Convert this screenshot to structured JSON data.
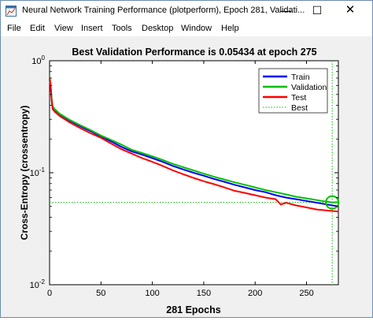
{
  "window": {
    "title": "Neural Network Training Performance (plotperform), Epoch 281, Validati...",
    "minimize_glyph": "—",
    "maximize_glyph": "☐",
    "close_glyph": "✕",
    "icon": "matlab-figure-icon"
  },
  "menu": {
    "items": [
      "File",
      "Edit",
      "View",
      "Insert",
      "Tools",
      "Desktop",
      "Window",
      "Help"
    ]
  },
  "chart_data": {
    "type": "line",
    "title": "Best Validation Performance is 0.05434 at epoch 275",
    "xlabel": "281 Epochs",
    "ylabel": "Cross-Entropy  (crossentropy)",
    "xlim": [
      0,
      281
    ],
    "ylim": [
      0.01,
      1
    ],
    "yscale": "log",
    "grid": false,
    "legend_position": "top-right",
    "x_ticks": [
      0,
      50,
      100,
      150,
      200,
      250
    ],
    "y_ticks": [
      {
        "value": 1,
        "base": "10",
        "exp": "0"
      },
      {
        "value": 0.1,
        "base": "10",
        "exp": "-1"
      },
      {
        "value": 0.01,
        "base": "10",
        "exp": "-2"
      }
    ],
    "series": [
      {
        "name": "Train",
        "color": "#0000ff",
        "points": [
          [
            0,
            0.68
          ],
          [
            1,
            0.6
          ],
          [
            2,
            0.45
          ],
          [
            3,
            0.38
          ],
          [
            5,
            0.36
          ],
          [
            10,
            0.33
          ],
          [
            20,
            0.29
          ],
          [
            30,
            0.26
          ],
          [
            40,
            0.235
          ],
          [
            50,
            0.21
          ],
          [
            60,
            0.19
          ],
          [
            70,
            0.17
          ],
          [
            80,
            0.155
          ],
          [
            90,
            0.145
          ],
          [
            100,
            0.135
          ],
          [
            110,
            0.125
          ],
          [
            120,
            0.115
          ],
          [
            130,
            0.107
          ],
          [
            140,
            0.1
          ],
          [
            150,
            0.094
          ],
          [
            160,
            0.088
          ],
          [
            170,
            0.083
          ],
          [
            180,
            0.078
          ],
          [
            190,
            0.074
          ],
          [
            200,
            0.07
          ],
          [
            210,
            0.067
          ],
          [
            220,
            0.063
          ],
          [
            230,
            0.06
          ],
          [
            240,
            0.058
          ],
          [
            250,
            0.056
          ],
          [
            260,
            0.054
          ],
          [
            270,
            0.052
          ],
          [
            281,
            0.05
          ]
        ]
      },
      {
        "name": "Validation",
        "color": "#00c000",
        "points": [
          [
            0,
            0.72
          ],
          [
            1,
            0.62
          ],
          [
            2,
            0.46
          ],
          [
            3,
            0.39
          ],
          [
            5,
            0.37
          ],
          [
            10,
            0.335
          ],
          [
            20,
            0.295
          ],
          [
            30,
            0.265
          ],
          [
            40,
            0.24
          ],
          [
            50,
            0.215
          ],
          [
            60,
            0.196
          ],
          [
            70,
            0.178
          ],
          [
            80,
            0.16
          ],
          [
            90,
            0.15
          ],
          [
            100,
            0.14
          ],
          [
            110,
            0.13
          ],
          [
            120,
            0.12
          ],
          [
            130,
            0.112
          ],
          [
            140,
            0.105
          ],
          [
            150,
            0.098
          ],
          [
            160,
            0.092
          ],
          [
            170,
            0.087
          ],
          [
            180,
            0.082
          ],
          [
            190,
            0.078
          ],
          [
            200,
            0.074
          ],
          [
            210,
            0.07
          ],
          [
            220,
            0.067
          ],
          [
            230,
            0.064
          ],
          [
            240,
            0.061
          ],
          [
            250,
            0.059
          ],
          [
            260,
            0.057
          ],
          [
            270,
            0.055
          ],
          [
            275,
            0.05434
          ],
          [
            281,
            0.0545
          ]
        ]
      },
      {
        "name": "Test",
        "color": "#ff0000",
        "points": [
          [
            0,
            0.7
          ],
          [
            1,
            0.6
          ],
          [
            2,
            0.44
          ],
          [
            3,
            0.37
          ],
          [
            5,
            0.35
          ],
          [
            10,
            0.32
          ],
          [
            20,
            0.28
          ],
          [
            30,
            0.25
          ],
          [
            40,
            0.225
          ],
          [
            50,
            0.205
          ],
          [
            60,
            0.182
          ],
          [
            70,
            0.162
          ],
          [
            80,
            0.148
          ],
          [
            90,
            0.135
          ],
          [
            100,
            0.125
          ],
          [
            110,
            0.115
          ],
          [
            120,
            0.105
          ],
          [
            130,
            0.097
          ],
          [
            140,
            0.09
          ],
          [
            150,
            0.084
          ],
          [
            160,
            0.079
          ],
          [
            170,
            0.074
          ],
          [
            180,
            0.069
          ],
          [
            190,
            0.066
          ],
          [
            200,
            0.063
          ],
          [
            210,
            0.06
          ],
          [
            220,
            0.058
          ],
          [
            225,
            0.052
          ],
          [
            230,
            0.054
          ],
          [
            240,
            0.051
          ],
          [
            250,
            0.049
          ],
          [
            260,
            0.047
          ],
          [
            270,
            0.046
          ],
          [
            281,
            0.045
          ]
        ]
      }
    ],
    "best": {
      "name": "Best",
      "epoch": 275,
      "value": 0.05434,
      "color": "#00c000"
    }
  }
}
